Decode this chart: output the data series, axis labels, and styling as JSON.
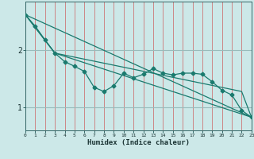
{
  "xlabel": "Humidex (Indice chaleur)",
  "background_color": "#cce8e8",
  "line_color": "#1a7a6e",
  "grid_color_v": "#cc7777",
  "grid_color_h": "#99bbbb",
  "lines": [
    {
      "x": [
        0,
        1,
        2,
        3,
        4,
        5,
        6,
        7,
        8,
        9,
        10,
        11,
        12,
        13,
        14,
        15,
        16,
        17,
        18,
        19,
        20,
        21,
        22,
        23
      ],
      "y": [
        2.62,
        2.42,
        2.18,
        1.95,
        1.8,
        1.72,
        1.63,
        1.35,
        1.28,
        1.38,
        1.6,
        1.52,
        1.58,
        1.68,
        1.6,
        1.57,
        1.6,
        1.6,
        1.58,
        1.45,
        1.3,
        1.22,
        0.95,
        0.83
      ],
      "marker": true
    },
    {
      "x": [
        0,
        23
      ],
      "y": [
        2.62,
        0.83
      ],
      "marker": false
    },
    {
      "x": [
        0,
        3,
        23
      ],
      "y": [
        2.62,
        1.95,
        0.83
      ],
      "marker": false
    },
    {
      "x": [
        0,
        3,
        22,
        23
      ],
      "y": [
        2.62,
        1.95,
        1.28,
        0.83
      ],
      "marker": false
    }
  ],
  "xlim": [
    0,
    23
  ],
  "ylim": [
    0.6,
    2.85
  ],
  "yticks": [
    1,
    2
  ],
  "xticks": [
    0,
    1,
    2,
    3,
    4,
    5,
    6,
    7,
    8,
    9,
    10,
    11,
    12,
    13,
    14,
    15,
    16,
    17,
    18,
    19,
    20,
    21,
    22,
    23
  ],
  "figsize": [
    3.2,
    2.0
  ],
  "dpi": 100
}
